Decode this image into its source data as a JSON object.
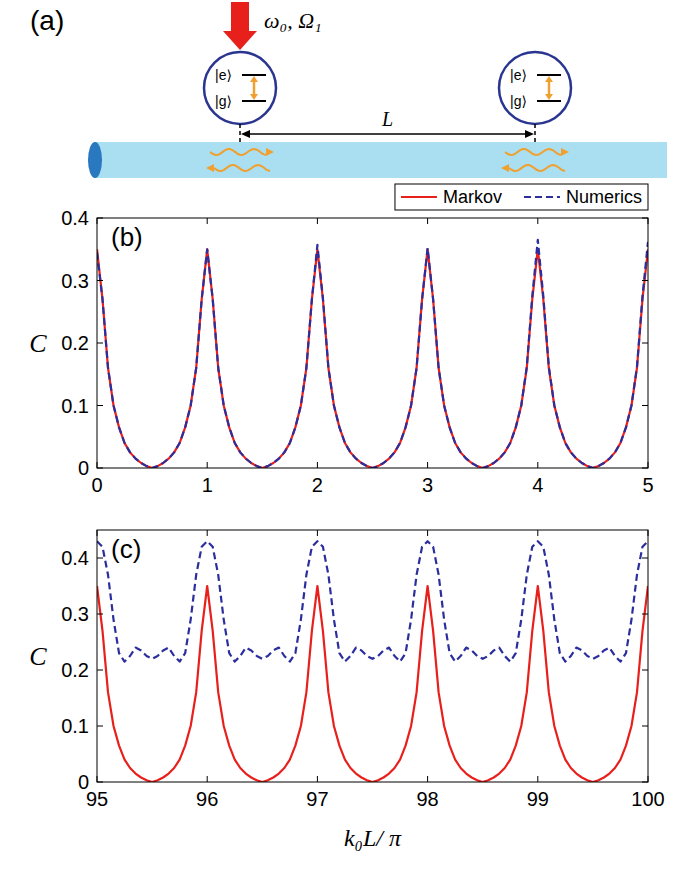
{
  "diagram": {
    "panel_label": "(a)",
    "drive_label": "ω₀, Ω₁",
    "atoms": [
      {
        "excited_label": "|e⟩",
        "ground_label": "|g⟩"
      },
      {
        "excited_label": "|e⟩",
        "ground_label": "|g⟩"
      }
    ],
    "separation_label": "L"
  },
  "chart_data": [
    {
      "type": "line",
      "title": "(b)",
      "ylabel": "C",
      "x": [
        0,
        0.05,
        0.1,
        0.15,
        0.2,
        0.25,
        0.3,
        0.35,
        0.4,
        0.45,
        0.5,
        0.55,
        0.6,
        0.65,
        0.7,
        0.75,
        0.8,
        0.85,
        0.9,
        0.95,
        1,
        1.05,
        1.1,
        1.15,
        1.2,
        1.25,
        1.3,
        1.35,
        1.4,
        1.45,
        1.5,
        1.55,
        1.6,
        1.65,
        1.7,
        1.75,
        1.8,
        1.85,
        1.9,
        1.95,
        2,
        2.05,
        2.1,
        2.15,
        2.2,
        2.25,
        2.3,
        2.35,
        2.4,
        2.45,
        2.5,
        2.55,
        2.6,
        2.65,
        2.7,
        2.75,
        2.8,
        2.85,
        2.9,
        2.95,
        3,
        3.05,
        3.1,
        3.15,
        3.2,
        3.25,
        3.3,
        3.35,
        3.4,
        3.45,
        3.5,
        3.55,
        3.6,
        3.65,
        3.7,
        3.75,
        3.8,
        3.85,
        3.9,
        3.95,
        4,
        4.05,
        4.1,
        4.15,
        4.2,
        4.25,
        4.3,
        4.35,
        4.4,
        4.45,
        4.5,
        4.55,
        4.6,
        4.65,
        4.7,
        4.75,
        4.8,
        4.85,
        4.9,
        4.95,
        5
      ],
      "series": [
        {
          "name": "Markov",
          "color": "#e8201c",
          "line_style": "solid",
          "values": [
            0.35,
            0.27,
            0.16,
            0.1,
            0.065,
            0.04,
            0.025,
            0.015,
            0.008,
            0.003,
            0,
            0.003,
            0.008,
            0.015,
            0.025,
            0.04,
            0.065,
            0.1,
            0.16,
            0.27,
            0.35,
            0.27,
            0.16,
            0.1,
            0.065,
            0.04,
            0.025,
            0.015,
            0.008,
            0.003,
            0,
            0.003,
            0.008,
            0.015,
            0.025,
            0.04,
            0.065,
            0.1,
            0.16,
            0.27,
            0.35,
            0.27,
            0.16,
            0.1,
            0.065,
            0.04,
            0.025,
            0.015,
            0.008,
            0.003,
            0,
            0.003,
            0.008,
            0.015,
            0.025,
            0.04,
            0.065,
            0.1,
            0.16,
            0.27,
            0.35,
            0.27,
            0.16,
            0.1,
            0.065,
            0.04,
            0.025,
            0.015,
            0.008,
            0.003,
            0,
            0.003,
            0.008,
            0.015,
            0.025,
            0.04,
            0.065,
            0.1,
            0.16,
            0.27,
            0.35,
            0.27,
            0.16,
            0.1,
            0.065,
            0.04,
            0.025,
            0.015,
            0.008,
            0.003,
            0,
            0.003,
            0.008,
            0.015,
            0.025,
            0.04,
            0.065,
            0.1,
            0.16,
            0.27,
            0.35
          ]
        },
        {
          "name": "Numerics",
          "color": "#2b2e9c",
          "line_style": "dashed",
          "values": [
            0.345,
            0.27,
            0.16,
            0.1,
            0.065,
            0.04,
            0.025,
            0.015,
            0.008,
            0.003,
            0,
            0.003,
            0.008,
            0.015,
            0.025,
            0.04,
            0.065,
            0.1,
            0.16,
            0.27,
            0.35,
            0.27,
            0.16,
            0.1,
            0.065,
            0.04,
            0.025,
            0.015,
            0.008,
            0.003,
            0,
            0.003,
            0.008,
            0.015,
            0.025,
            0.04,
            0.065,
            0.1,
            0.16,
            0.27,
            0.357,
            0.272,
            0.16,
            0.1,
            0.065,
            0.04,
            0.025,
            0.015,
            0.008,
            0.003,
            0,
            0.003,
            0.008,
            0.015,
            0.025,
            0.04,
            0.065,
            0.1,
            0.16,
            0.27,
            0.352,
            0.27,
            0.16,
            0.1,
            0.065,
            0.04,
            0.025,
            0.015,
            0.008,
            0.003,
            0,
            0.003,
            0.008,
            0.015,
            0.025,
            0.04,
            0.065,
            0.1,
            0.162,
            0.275,
            0.365,
            0.275,
            0.162,
            0.1,
            0.065,
            0.04,
            0.025,
            0.015,
            0.008,
            0.003,
            0,
            0.003,
            0.008,
            0.015,
            0.025,
            0.04,
            0.065,
            0.1,
            0.162,
            0.275,
            0.362
          ]
        }
      ],
      "xlim": [
        0,
        5
      ],
      "xticks": [
        0,
        1,
        2,
        3,
        4,
        5
      ],
      "ylim": [
        0,
        0.4
      ],
      "yticks": [
        0,
        0.1,
        0.2,
        0.3,
        0.4
      ],
      "legend": "top"
    },
    {
      "type": "line",
      "title": "(c)",
      "ylabel": "C",
      "xlabel": "k₀L/ π",
      "x": [
        95,
        95.05,
        95.1,
        95.15,
        95.2,
        95.25,
        95.3,
        95.35,
        95.4,
        95.45,
        95.5,
        95.55,
        95.6,
        95.65,
        95.7,
        95.75,
        95.8,
        95.85,
        95.9,
        95.95,
        96,
        96.05,
        96.1,
        96.15,
        96.2,
        96.25,
        96.3,
        96.35,
        96.4,
        96.45,
        96.5,
        96.55,
        96.6,
        96.65,
        96.7,
        96.75,
        96.8,
        96.85,
        96.9,
        96.95,
        97,
        97.05,
        97.1,
        97.15,
        97.2,
        97.25,
        97.3,
        97.35,
        97.4,
        97.45,
        97.5,
        97.55,
        97.6,
        97.65,
        97.7,
        97.75,
        97.8,
        97.85,
        97.9,
        97.95,
        98,
        98.05,
        98.1,
        98.15,
        98.2,
        98.25,
        98.3,
        98.35,
        98.4,
        98.45,
        98.5,
        98.55,
        98.6,
        98.65,
        98.7,
        98.75,
        98.8,
        98.85,
        98.9,
        98.95,
        99,
        99.05,
        99.1,
        99.15,
        99.2,
        99.25,
        99.3,
        99.35,
        99.4,
        99.45,
        99.5,
        99.55,
        99.6,
        99.65,
        99.7,
        99.75,
        99.8,
        99.85,
        99.9,
        99.95,
        100
      ],
      "series": [
        {
          "name": "Markov",
          "color": "#e8201c",
          "line_style": "solid",
          "values": [
            0.35,
            0.27,
            0.16,
            0.1,
            0.065,
            0.04,
            0.025,
            0.015,
            0.008,
            0.003,
            0,
            0.003,
            0.008,
            0.015,
            0.025,
            0.04,
            0.065,
            0.1,
            0.16,
            0.27,
            0.35,
            0.27,
            0.16,
            0.1,
            0.065,
            0.04,
            0.025,
            0.015,
            0.008,
            0.003,
            0,
            0.003,
            0.008,
            0.015,
            0.025,
            0.04,
            0.065,
            0.1,
            0.16,
            0.27,
            0.35,
            0.27,
            0.16,
            0.1,
            0.065,
            0.04,
            0.025,
            0.015,
            0.008,
            0.003,
            0,
            0.003,
            0.008,
            0.015,
            0.025,
            0.04,
            0.065,
            0.1,
            0.16,
            0.27,
            0.35,
            0.27,
            0.16,
            0.1,
            0.065,
            0.04,
            0.025,
            0.015,
            0.008,
            0.003,
            0,
            0.003,
            0.008,
            0.015,
            0.025,
            0.04,
            0.065,
            0.1,
            0.16,
            0.27,
            0.35,
            0.27,
            0.16,
            0.1,
            0.065,
            0.04,
            0.025,
            0.015,
            0.008,
            0.003,
            0,
            0.003,
            0.008,
            0.015,
            0.025,
            0.04,
            0.065,
            0.1,
            0.16,
            0.27,
            0.35
          ]
        },
        {
          "name": "Numerics",
          "color": "#2b2e9c",
          "line_style": "dashed",
          "values": [
            0.43,
            0.42,
            0.37,
            0.29,
            0.23,
            0.215,
            0.225,
            0.24,
            0.235,
            0.225,
            0.22,
            0.225,
            0.235,
            0.24,
            0.225,
            0.215,
            0.23,
            0.29,
            0.37,
            0.42,
            0.43,
            0.42,
            0.37,
            0.29,
            0.23,
            0.215,
            0.225,
            0.24,
            0.235,
            0.225,
            0.22,
            0.225,
            0.235,
            0.24,
            0.225,
            0.215,
            0.23,
            0.29,
            0.37,
            0.42,
            0.43,
            0.42,
            0.37,
            0.29,
            0.23,
            0.215,
            0.225,
            0.24,
            0.235,
            0.225,
            0.22,
            0.225,
            0.235,
            0.24,
            0.225,
            0.215,
            0.23,
            0.29,
            0.37,
            0.42,
            0.43,
            0.42,
            0.37,
            0.29,
            0.23,
            0.215,
            0.225,
            0.24,
            0.235,
            0.225,
            0.22,
            0.225,
            0.235,
            0.24,
            0.225,
            0.215,
            0.23,
            0.29,
            0.37,
            0.42,
            0.43,
            0.42,
            0.37,
            0.29,
            0.23,
            0.215,
            0.225,
            0.24,
            0.235,
            0.225,
            0.22,
            0.225,
            0.235,
            0.24,
            0.225,
            0.215,
            0.23,
            0.29,
            0.37,
            0.42,
            0.43
          ]
        }
      ],
      "xlim": [
        95,
        100
      ],
      "xticks": [
        95,
        96,
        97,
        98,
        99,
        100
      ],
      "ylim": [
        0,
        0.45
      ],
      "yticks": [
        0,
        0.1,
        0.2,
        0.3,
        0.4
      ]
    }
  ]
}
